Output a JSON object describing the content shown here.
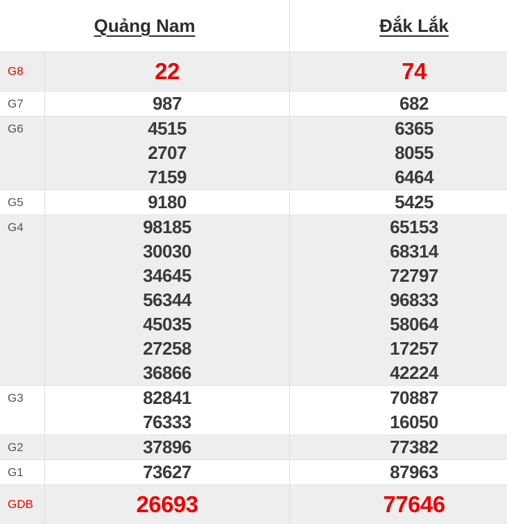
{
  "header": {
    "columns": [
      {
        "label": "Quảng Nam"
      },
      {
        "label": "Đắk Lắk"
      }
    ]
  },
  "prizes": [
    {
      "label": "G8",
      "highlight": true,
      "col1": [
        "22"
      ],
      "col2": [
        "74"
      ]
    },
    {
      "label": "G7",
      "highlight": false,
      "col1": [
        "987"
      ],
      "col2": [
        "682"
      ]
    },
    {
      "label": "G6",
      "highlight": false,
      "col1": [
        "4515",
        "2707",
        "7159"
      ],
      "col2": [
        "6365",
        "8055",
        "6464"
      ]
    },
    {
      "label": "G5",
      "highlight": false,
      "col1": [
        "9180"
      ],
      "col2": [
        "5425"
      ]
    },
    {
      "label": "G4",
      "highlight": false,
      "col1": [
        "98185",
        "30030",
        "34645",
        "56344",
        "45035",
        "27258",
        "36866"
      ],
      "col2": [
        "65153",
        "68314",
        "72797",
        "96833",
        "58064",
        "17257",
        "42224"
      ]
    },
    {
      "label": "G3",
      "highlight": false,
      "col1": [
        "82841",
        "76333"
      ],
      "col2": [
        "70887",
        "16050"
      ]
    },
    {
      "label": "G2",
      "highlight": false,
      "col1": [
        "37896"
      ],
      "col2": [
        "77382"
      ]
    },
    {
      "label": "G1",
      "highlight": false,
      "col1": [
        "73627"
      ],
      "col2": [
        "87963"
      ]
    },
    {
      "label": "GDB",
      "highlight": true,
      "col1": [
        "26693"
      ],
      "col2": [
        "77646"
      ]
    }
  ],
  "colors": {
    "accent_red": "#ee0000",
    "value_text": "#3a3a3a",
    "label_text": "#555555",
    "row_shade": "#eeeeee",
    "border": "#e3e3e3",
    "header_text": "#2e2e2e"
  }
}
